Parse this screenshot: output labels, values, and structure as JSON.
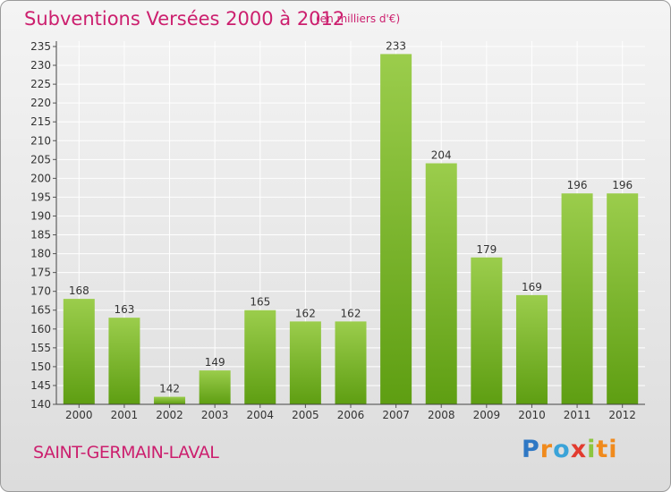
{
  "header": {
    "title": "Subventions Versées 2000 à 2012",
    "subtitle": "(en milliers d'€)"
  },
  "footer": {
    "place": "SAINT-GERMAIN-LAVAL",
    "logo": [
      "P",
      "r",
      "o",
      "x",
      "i",
      "ti"
    ]
  },
  "colors": {
    "bar_top": "#9bcd4c",
    "bar_bottom": "#5e9e12",
    "title": "#cc1f6e",
    "grid": "#ffffff"
  },
  "chart_data": {
    "type": "bar",
    "title": "Subventions Versées 2000 à 2012",
    "subtitle": "(en milliers d'€)",
    "categories": [
      "2000",
      "2001",
      "2002",
      "2003",
      "2004",
      "2005",
      "2006",
      "2007",
      "2008",
      "2009",
      "2010",
      "2011",
      "2012"
    ],
    "values": [
      168,
      163,
      142,
      149,
      165,
      162,
      162,
      233,
      204,
      179,
      169,
      196,
      196
    ],
    "ylim": [
      140,
      235
    ],
    "ytick_step": 5,
    "grid": true,
    "legend": "none"
  }
}
